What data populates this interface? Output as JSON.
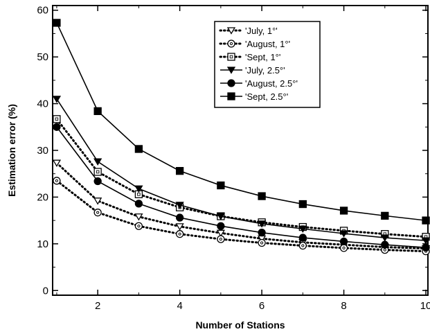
{
  "chart_data": {
    "type": "line",
    "title": "",
    "xlabel": "Number of Stations",
    "ylabel": "Estimation error (%)",
    "xlim": [
      0.9,
      10.05
    ],
    "ylim": [
      -1,
      61
    ],
    "xticks": [
      2,
      4,
      6,
      8,
      10
    ],
    "yticks": [
      0,
      10,
      20,
      30,
      40,
      50,
      60
    ],
    "grid": false,
    "legend_position": "top-right",
    "x": [
      1,
      2,
      3,
      4,
      5,
      6,
      7,
      8,
      9,
      10
    ],
    "series": [
      {
        "name": "'July, 1°'",
        "style": "dotted",
        "marker": "triangle-down-open",
        "values": [
          27.3,
          19.2,
          15.8,
          13.7,
          12.3,
          11.1,
          10.3,
          9.8,
          9.3,
          9.0
        ]
      },
      {
        "name": "'August, 1°'",
        "style": "dotted",
        "marker": "circle-open",
        "values": [
          23.5,
          16.7,
          13.8,
          12.1,
          11.0,
          10.2,
          9.6,
          9.1,
          8.7,
          8.4
        ]
      },
      {
        "name": "'Sept, 1°'",
        "style": "dotted",
        "marker": "square-open",
        "values": [
          36.7,
          25.4,
          20.6,
          17.8,
          15.9,
          14.6,
          13.6,
          12.8,
          12.1,
          11.5
        ]
      },
      {
        "name": "'July, 2.5°'",
        "style": "solid",
        "marker": "triangle-down-filled",
        "values": [
          41.0,
          27.6,
          21.8,
          18.3,
          15.9,
          14.3,
          13.2,
          12.2,
          11.3,
          10.7
        ]
      },
      {
        "name": "'August, 2.5°'",
        "style": "solid",
        "marker": "circle-filled",
        "values": [
          35.0,
          23.4,
          18.6,
          15.6,
          13.8,
          12.4,
          11.3,
          10.5,
          9.8,
          9.2
        ]
      },
      {
        "name": "'Sept, 2.5°'",
        "style": "solid",
        "marker": "square-filled",
        "values": [
          57.3,
          38.4,
          30.3,
          25.6,
          22.5,
          20.2,
          18.5,
          17.1,
          16.0,
          15.0
        ]
      }
    ]
  }
}
